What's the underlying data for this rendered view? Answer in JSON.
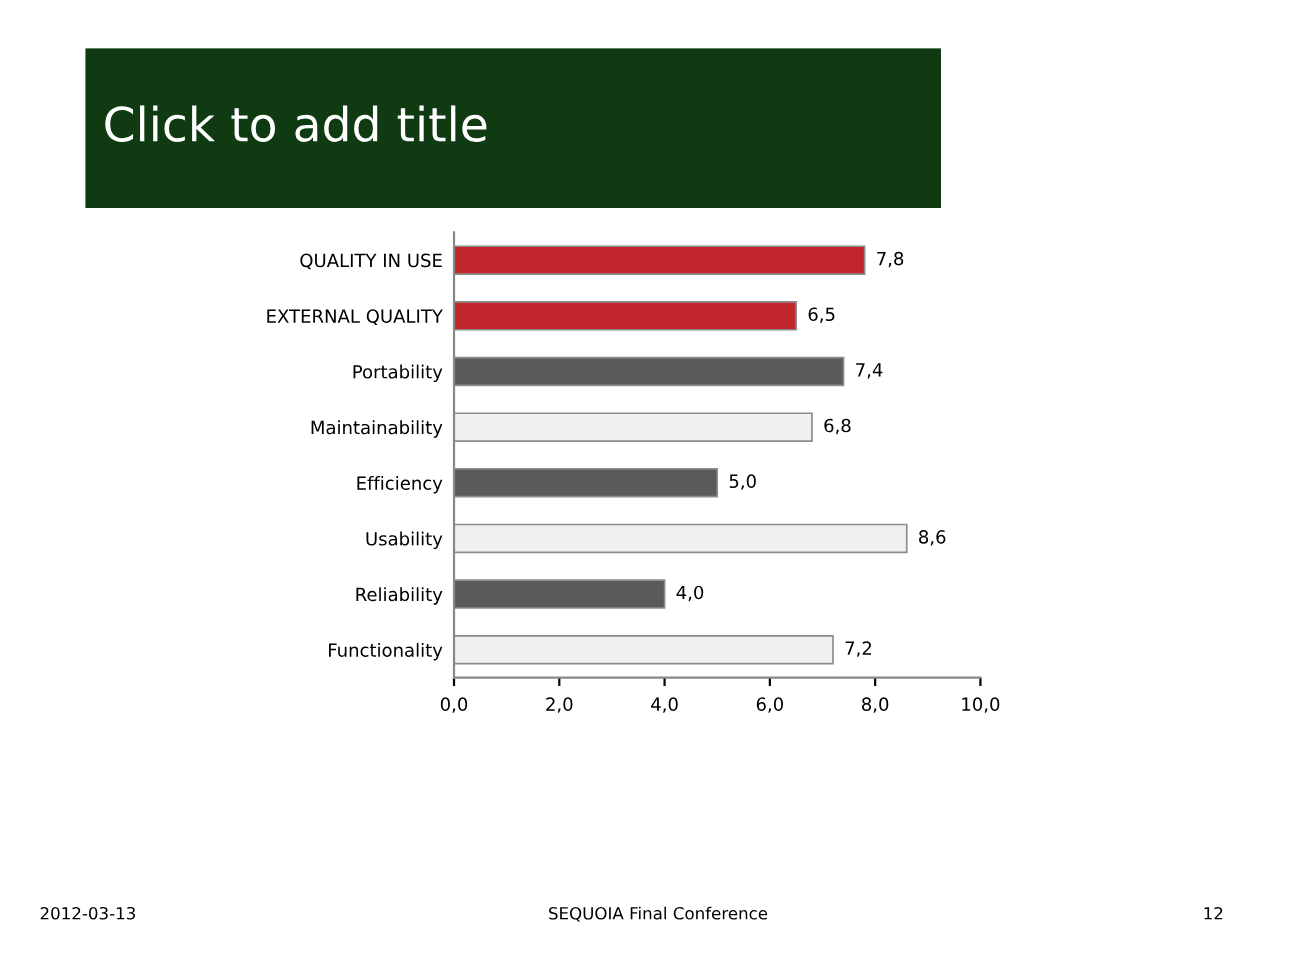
{
  "chart_data": {
    "type": "bar",
    "orientation": "horizontal",
    "title": "Click to add title",
    "categories": [
      "QUALITY IN USE",
      "EXTERNAL QUALITY",
      "Portability",
      "Maintainability",
      "Efficiency",
      "Usability",
      "Reliability",
      "Functionality"
    ],
    "values": [
      7.8,
      6.5,
      7.4,
      6.8,
      5.0,
      8.6,
      4.0,
      7.2
    ],
    "colors": [
      "#c0262c",
      "#c0262c",
      "#5a5a5a",
      "#f0f0f0",
      "#5a5a5a",
      "#f0f0f0",
      "#5a5a5a",
      "#f0f0f0"
    ],
    "value_labels": [
      "7,8",
      "6,5",
      "7,4",
      "6,8",
      "5,0",
      "8,6",
      "4,0",
      "7,2"
    ],
    "xlim": [
      0,
      10
    ],
    "xticks": [
      {
        "value": 0,
        "label": "0,0"
      },
      {
        "value": 2,
        "label": "2,0"
      },
      {
        "value": 4,
        "label": "4,0"
      },
      {
        "value": 6,
        "label": "6,0"
      },
      {
        "value": 8,
        "label": "8,0"
      },
      {
        "value": 10,
        "label": "10,0"
      }
    ],
    "grid": false,
    "legend": false,
    "annotations": [
      "2012-03-13",
      "SEQUOIA Final Conference",
      "12"
    ]
  }
}
